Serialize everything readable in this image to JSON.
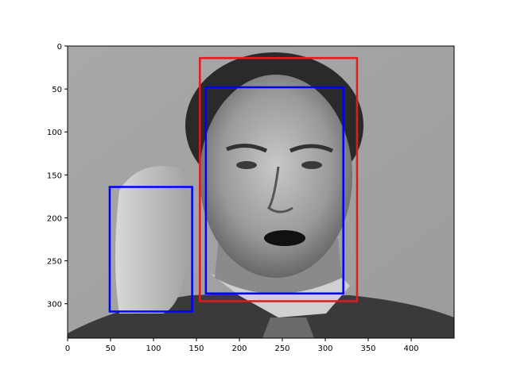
{
  "figure": {
    "image": {
      "description_name": "grayscale-portrait-photo",
      "width_units": 450,
      "height_units": 340
    },
    "axes": {
      "xlim": [
        0,
        450
      ],
      "ylim": [
        340,
        0
      ],
      "x_ticks": [
        0,
        50,
        100,
        150,
        200,
        250,
        300,
        350,
        400
      ],
      "y_ticks": [
        0,
        50,
        100,
        150,
        200,
        250,
        300
      ]
    },
    "boxes": [
      {
        "name": "face-box-red",
        "color": "#e41a1c",
        "x0": 154,
        "y0": 14,
        "x1": 337,
        "y1": 297
      },
      {
        "name": "face-box-blue",
        "color": "#0000ff",
        "x0": 161,
        "y0": 48,
        "x1": 321,
        "y1": 288
      },
      {
        "name": "hand-box-blue",
        "color": "#0000ff",
        "x0": 49,
        "y0": 164,
        "x1": 145,
        "y1": 309
      }
    ]
  }
}
